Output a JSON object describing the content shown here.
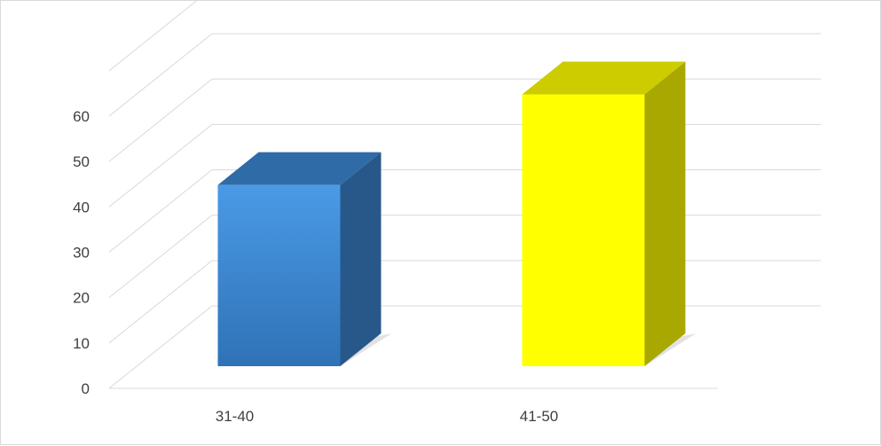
{
  "chart_data": {
    "type": "bar",
    "style": "3d-column",
    "categories": [
      "31-40",
      "41-50"
    ],
    "values": [
      40,
      60
    ],
    "bar_colors": [
      "#3b86cf",
      "#ffff00"
    ],
    "ylim": [
      0,
      60
    ],
    "yticks": [
      "0",
      "10",
      "20",
      "30",
      "40",
      "50",
      "60"
    ],
    "grid": true,
    "legend": "none"
  }
}
